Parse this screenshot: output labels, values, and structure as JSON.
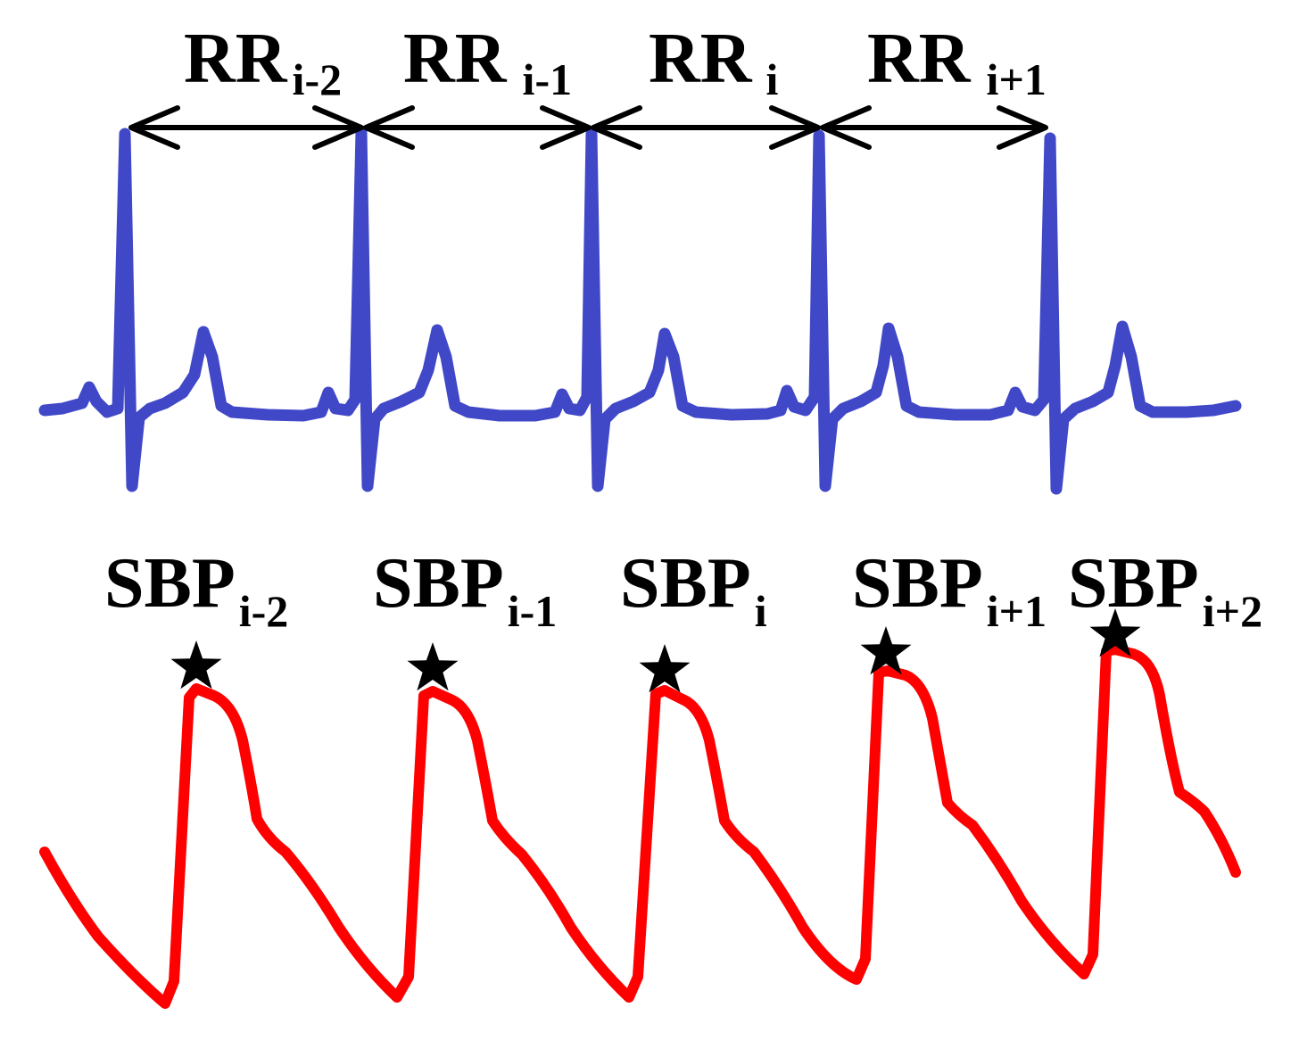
{
  "colors": {
    "ecg": "#4048c8",
    "bp": "#ff0000",
    "arrow": "#000000",
    "marker": "#000000",
    "background": "#ffffff"
  },
  "rr_labels": [
    {
      "main": "RR",
      "sub": "i-2"
    },
    {
      "main": "RR",
      "sub": "i-1"
    },
    {
      "main": "RR",
      "sub": "i"
    },
    {
      "main": "RR",
      "sub": "i+1"
    }
  ],
  "sbp_labels": [
    {
      "main": "SBP",
      "sub": "i-2"
    },
    {
      "main": "SBP",
      "sub": "i-1"
    },
    {
      "main": "SBP",
      "sub": "i"
    },
    {
      "main": "SBP",
      "sub": "i+1"
    },
    {
      "main": "SBP",
      "sub": "i+2"
    }
  ],
  "marker_icon": "star-icon"
}
